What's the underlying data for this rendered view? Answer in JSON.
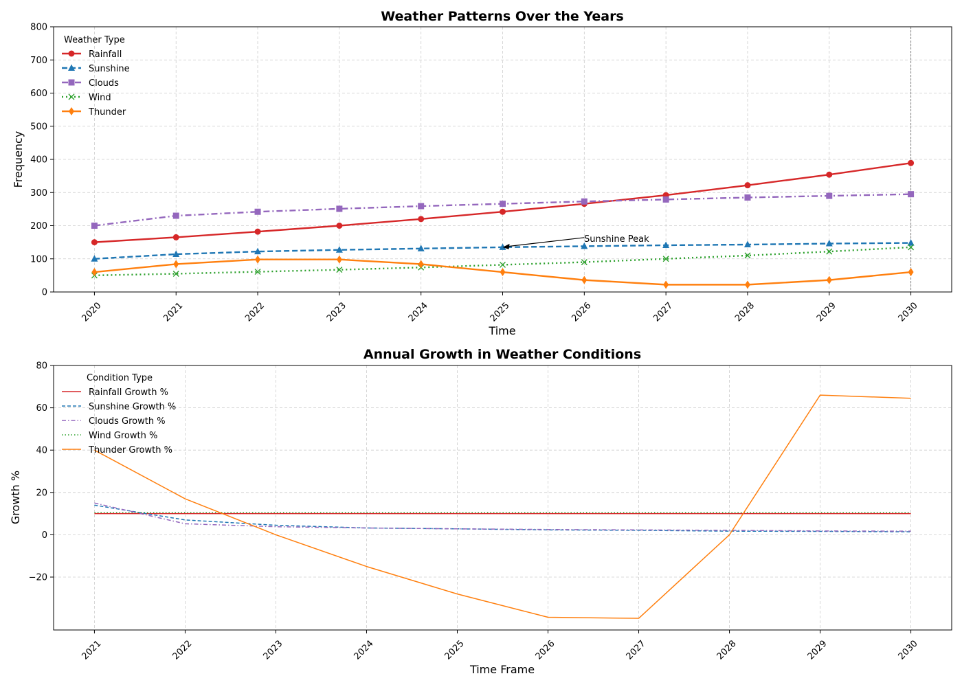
{
  "chart_data": [
    {
      "type": "line",
      "title": "Weather Patterns Over the Years",
      "xlabel": "Time",
      "ylabel": "Frequency",
      "ylim": [
        0,
        800
      ],
      "yticks": [
        0,
        100,
        200,
        300,
        400,
        500,
        600,
        700,
        800
      ],
      "x": [
        2020,
        2021,
        2022,
        2023,
        2024,
        2025,
        2026,
        2027,
        2028,
        2029,
        2030
      ],
      "xticks": [
        "2020",
        "2021",
        "2022",
        "2023",
        "2024",
        "2025",
        "2026",
        "2027",
        "2028",
        "2029",
        "2030"
      ],
      "grid": true,
      "legend_title": "Weather Type",
      "legend_position": "top-left",
      "vline_x": 2030,
      "series": [
        {
          "name": "Rainfall",
          "color": "#d62728",
          "dash": "solid",
          "marker": "circle",
          "values": [
            150,
            165,
            182,
            200,
            220,
            242,
            266,
            292,
            322,
            354,
            389
          ]
        },
        {
          "name": "Sunshine",
          "color": "#1f77b4",
          "dash": "dashed",
          "marker": "triangle",
          "values": [
            100,
            114,
            122,
            127,
            131,
            135,
            138,
            141,
            143,
            146,
            148
          ]
        },
        {
          "name": "Clouds",
          "color": "#9467bd",
          "dash": "dashdot",
          "marker": "square",
          "values": [
            200,
            230,
            242,
            251,
            259,
            266,
            273,
            279,
            285,
            290,
            295
          ]
        },
        {
          "name": "Wind",
          "color": "#2ca02c",
          "dash": "dotted",
          "marker": "x",
          "values": [
            50,
            55,
            61,
            67,
            74,
            82,
            90,
            100,
            110,
            122,
            135
          ]
        },
        {
          "name": "Thunder",
          "color": "#ff7f0e",
          "dash": "solid",
          "marker": "diamond",
          "values": [
            60,
            84,
            98,
            98,
            84,
            60,
            36,
            22,
            22,
            36,
            60
          ]
        }
      ],
      "annotation": {
        "text": "Sunshine Peak",
        "point_x": 2025,
        "point_y": 135,
        "text_x": 2026,
        "text_y": 160
      }
    },
    {
      "type": "line",
      "title": "Annual Growth in Weather Conditions",
      "xlabel": "Time Frame",
      "ylabel": "Growth %",
      "ylim": [
        -45,
        80
      ],
      "yticks": [
        -20,
        0,
        20,
        40,
        60,
        80
      ],
      "ytick_labels": [
        "−20",
        "0",
        "20",
        "40",
        "60",
        "80"
      ],
      "x": [
        2021,
        2022,
        2023,
        2024,
        2025,
        2026,
        2027,
        2028,
        2029,
        2030
      ],
      "xticks": [
        "2021",
        "2022",
        "2023",
        "2024",
        "2025",
        "2026",
        "2027",
        "2028",
        "2029",
        "2030"
      ],
      "grid": true,
      "legend_title": "Condition Type",
      "legend_position": "top-left",
      "series": [
        {
          "name": "Rainfall Growth %",
          "color": "#d62728",
          "dash": "solid",
          "values": [
            10,
            10,
            10,
            10,
            10,
            10,
            10,
            10,
            10,
            10
          ]
        },
        {
          "name": "Sunshine Growth %",
          "color": "#1f77b4",
          "dash": "dashed",
          "values": [
            14,
            7,
            4.5,
            3.2,
            2.8,
            2.3,
            2.1,
            1.7,
            1.6,
            1.4
          ]
        },
        {
          "name": "Clouds Growth %",
          "color": "#9467bd",
          "dash": "dashdot",
          "values": [
            15,
            5.2,
            3.8,
            3.2,
            2.8,
            2.5,
            2.3,
            2.1,
            1.8,
            1.7
          ]
        },
        {
          "name": "Wind Growth %",
          "color": "#2ca02c",
          "dash": "dotted",
          "values": [
            10.5,
            10.5,
            10.5,
            10.5,
            10.5,
            10.5,
            10.5,
            10.5,
            10.5,
            10.5
          ]
        },
        {
          "name": "Thunder Growth %",
          "color": "#ff7f0e",
          "dash": "solid",
          "values": [
            40,
            17,
            0,
            -15,
            -28,
            -39,
            -39.5,
            0,
            66,
            64.5
          ]
        }
      ]
    }
  ]
}
